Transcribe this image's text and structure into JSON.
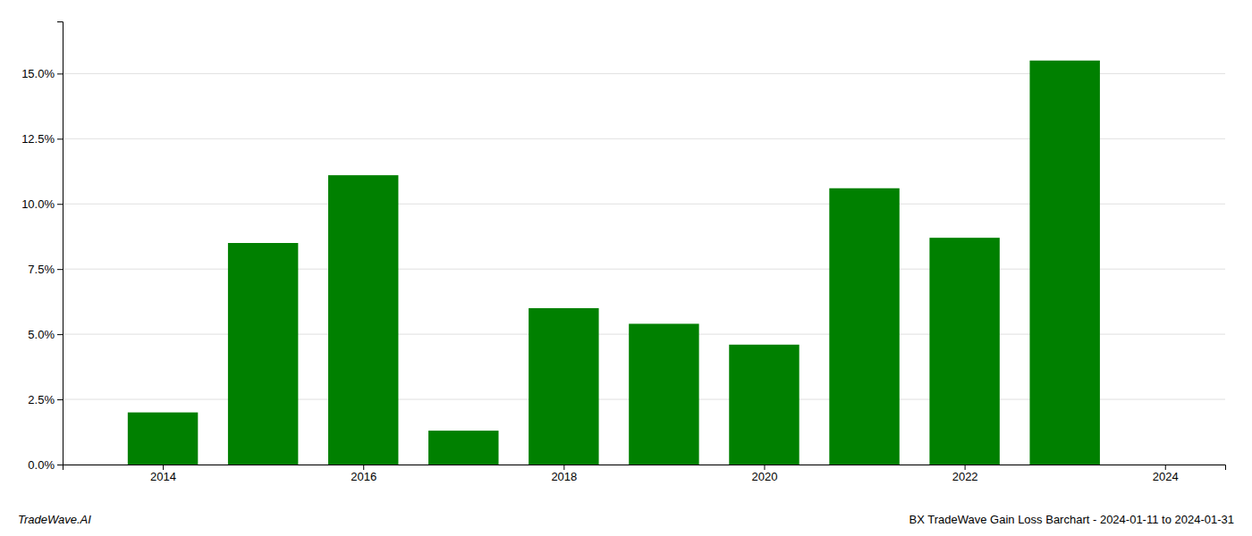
{
  "chart_data": {
    "type": "bar",
    "x": [
      2014,
      2015,
      2016,
      2017,
      2018,
      2019,
      2020,
      2021,
      2022,
      2023
    ],
    "values": [
      0.02,
      0.085,
      0.111,
      0.013,
      0.06,
      0.054,
      0.046,
      0.106,
      0.087,
      0.155
    ],
    "color": "#008000",
    "xlim": [
      2013.0,
      2024.6
    ],
    "xticks": [
      2014,
      2016,
      2018,
      2020,
      2022,
      2024
    ],
    "ylim": [
      0,
      0.17
    ],
    "yticks": [
      {
        "value": 0.0,
        "label": "0.0%"
      },
      {
        "value": 0.025,
        "label": "2.5%"
      },
      {
        "value": 0.05,
        "label": "5.0%"
      },
      {
        "value": 0.075,
        "label": "7.5%"
      },
      {
        "value": 0.1,
        "label": "10.0%"
      },
      {
        "value": 0.125,
        "label": "12.5%"
      },
      {
        "value": 0.15,
        "label": "15.0%"
      }
    ],
    "grid": true,
    "annotations": [
      "TradeWave.AI",
      "BX TradeWave Gain Loss Barchart - 2024-01-11 to 2024-01-31"
    ]
  }
}
